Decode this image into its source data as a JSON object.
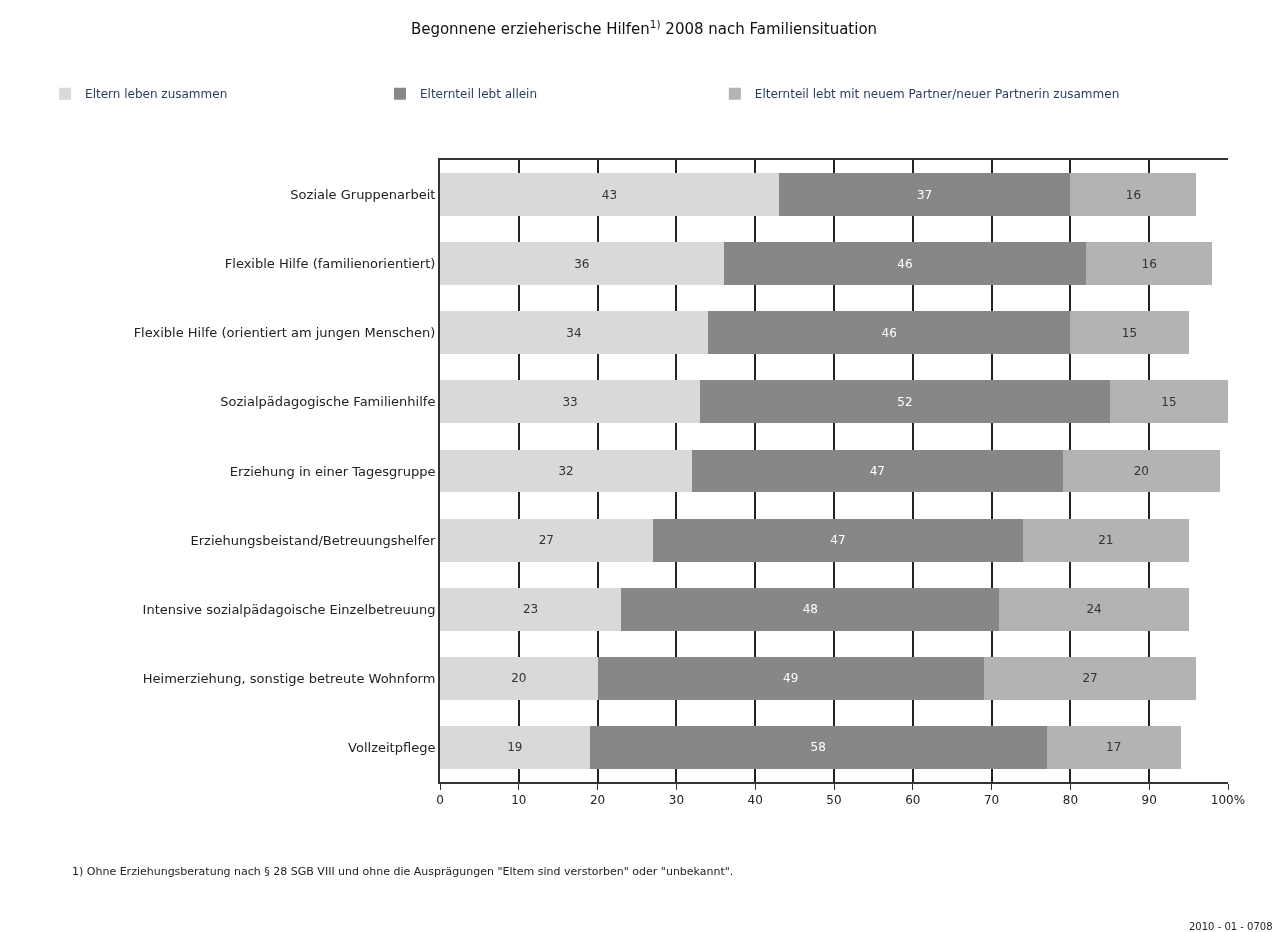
{
  "chart_data": {
    "type": "bar",
    "orientation": "horizontal",
    "stacked": true,
    "data_labels": true,
    "title": "Begonnene erzieherische Hilfen$^{1)}$ 2008 nach Familiensituation",
    "categories": [
      "Soziale Gruppenarbeit",
      "Flexible Hilfe (familienorientiert)",
      "Flexible Hilfe (orientiert am jungen Menschen)",
      "Sozialpädagogische Familienhilfe",
      "Erziehung in einer Tagesgruppe",
      "Erziehungsbeistand/Betreuungshelfer",
      "Intensive sozialpädagoische Einzelbetreuung",
      "Heimerziehung, sonstige betreute Wohnform",
      "Vollzeitpflege"
    ],
    "series": [
      {
        "name": "Eltern leben zusammen",
        "color": "#d9d9d9",
        "values": [
          43,
          36,
          34,
          33,
          32,
          27,
          23,
          20,
          19
        ]
      },
      {
        "name": "Elternteil lebt allein",
        "color": "#878787",
        "values": [
          37,
          46,
          46,
          52,
          47,
          47,
          48,
          49,
          58
        ]
      },
      {
        "name": "Elternteil lebt mit neuem Partner/neuer Partnerin zusammen",
        "color": "#b3b3b3",
        "values": [
          16,
          16,
          15,
          15,
          20,
          21,
          24,
          27,
          17
        ]
      }
    ],
    "xlim": [
      0,
      100
    ],
    "xticks": [
      0,
      10,
      20,
      30,
      40,
      50,
      60,
      70,
      80,
      90,
      {
        "value": 100,
        "label": "100%"
      }
    ],
    "grid": "x",
    "legend": "top",
    "annotations": [
      "1) Ohne Erziehungsberatung nach § 28 SGB VIII und ohne die Ausprägungen \"Eltem sind verstorben\" oder \"unbekannt\".",
      "2010 - 01 - 0708"
    ]
  }
}
